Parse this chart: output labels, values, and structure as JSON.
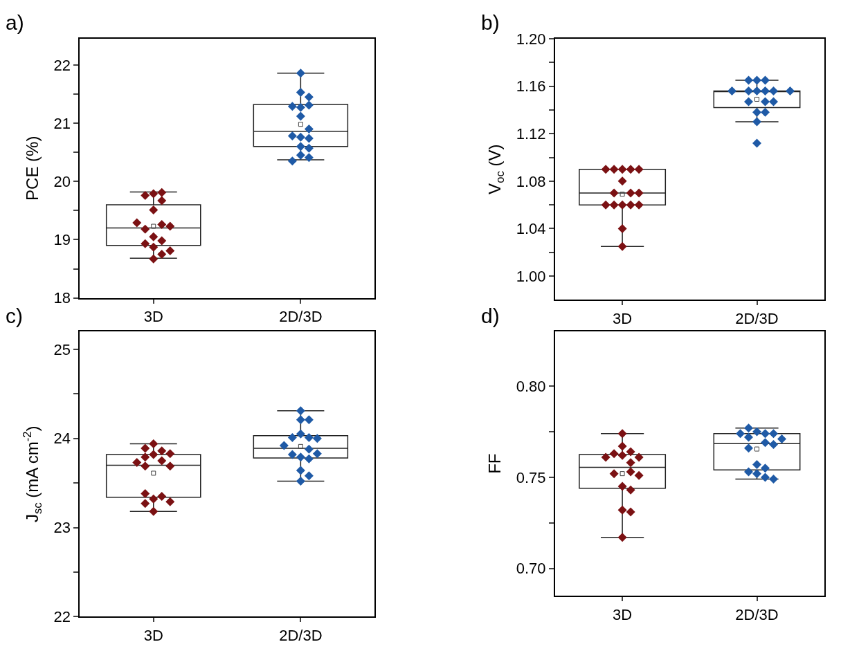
{
  "chart_data": [
    {
      "type": "box",
      "annotations": [
        "a)"
      ],
      "ylabel": "PCE (%)",
      "categories": [
        "3D",
        "2D/3D"
      ],
      "ylim": [
        18,
        22.45
      ],
      "yticks": [
        18,
        {
          "value": 18.5,
          "label": null
        },
        19,
        {
          "value": 19.5,
          "label": null
        },
        20,
        {
          "value": 20.5,
          "label": null
        },
        21,
        {
          "value": 21.5,
          "label": null
        },
        22
      ],
      "boxes": [
        {
          "low": 18.68,
          "q1": 18.9,
          "median": 19.2,
          "q3": 19.6,
          "high": 19.82,
          "mean": 19.23
        },
        {
          "low": 20.37,
          "q1": 20.6,
          "median": 20.86,
          "q3": 21.32,
          "high": 21.86,
          "mean": 20.98
        }
      ],
      "marker": "diamond",
      "grid": false,
      "series": [
        {
          "type": "scatter",
          "x": [
            "3D",
            "3D",
            "3D",
            "3D",
            "3D",
            "3D",
            "3D",
            "3D",
            "3D",
            "3D",
            "3D",
            "3D",
            "3D",
            "3D",
            "3D",
            "3D"
          ],
          "color": "#7b1113",
          "values": [
            19.79,
            19.67,
            19.81,
            19.76,
            19.51,
            19.26,
            19.18,
            19.23,
            19.29,
            19.05,
            18.98,
            18.87,
            18.93,
            18.75,
            18.81,
            18.67
          ]
        },
        {
          "type": "scatter",
          "x": [
            "2D/3D",
            "2D/3D",
            "2D/3D",
            "2D/3D",
            "2D/3D",
            "2D/3D",
            "2D/3D",
            "2D/3D",
            "2D/3D",
            "2D/3D",
            "2D/3D",
            "2D/3D",
            "2D/3D",
            "2D/3D",
            "2D/3D",
            "2D/3D"
          ],
          "color": "#1f5aa6",
          "values": [
            21.86,
            21.53,
            21.45,
            21.27,
            21.31,
            21.29,
            21.12,
            20.9,
            20.76,
            20.74,
            20.78,
            20.6,
            20.57,
            20.45,
            20.41,
            20.35
          ]
        }
      ]
    },
    {
      "type": "box",
      "annotations": [
        "b)"
      ],
      "ylabel": "V$_{oc}$ (V)",
      "categories": [
        "3D",
        "2D/3D"
      ],
      "ylim": [
        0.98,
        1.2
      ],
      "yticks": [
        {
          "value": 1.0,
          "label": "1.00"
        },
        {
          "value": 1.02,
          "label": null
        },
        {
          "value": 1.04,
          "label": "1.04"
        },
        {
          "value": 1.06,
          "label": null
        },
        {
          "value": 1.08,
          "label": "1.08"
        },
        {
          "value": 1.1,
          "label": null
        },
        {
          "value": 1.12,
          "label": "1.12"
        },
        {
          "value": 1.14,
          "label": null
        },
        {
          "value": 1.16,
          "label": "1.16"
        },
        {
          "value": 1.18,
          "label": null
        },
        {
          "value": 1.2,
          "label": "1.20"
        }
      ],
      "boxes": [
        {
          "low": 1.025,
          "q1": 1.06,
          "median": 1.07,
          "q3": 1.09,
          "high": 1.09,
          "mean": 1.069
        },
        {
          "low": 1.13,
          "q1": 1.142,
          "median": 1.156,
          "q3": 1.156,
          "high": 1.165,
          "mean": 1.149
        }
      ],
      "marker": "diamond",
      "grid": false,
      "series": [
        {
          "type": "scatter",
          "x": [
            "3D",
            "3D",
            "3D",
            "3D",
            "3D",
            "3D",
            "3D",
            "3D",
            "3D",
            "3D",
            "3D",
            "3D",
            "3D",
            "3D",
            "3D",
            "3D"
          ],
          "color": "#7b1113",
          "values": [
            1.09,
            1.09,
            1.09,
            1.09,
            1.09,
            1.08,
            1.07,
            1.07,
            1.07,
            1.06,
            1.06,
            1.06,
            1.06,
            1.06,
            1.04,
            1.025
          ]
        },
        {
          "type": "scatter",
          "x": [
            "2D/3D",
            "2D/3D",
            "2D/3D",
            "2D/3D",
            "2D/3D",
            "2D/3D",
            "2D/3D",
            "2D/3D",
            "2D/3D",
            "2D/3D",
            "2D/3D",
            "2D/3D",
            "2D/3D",
            "2D/3D",
            "2D/3D",
            "2D/3D"
          ],
          "color": "#1f5aa6",
          "values": [
            1.165,
            1.165,
            1.165,
            1.156,
            1.156,
            1.156,
            1.156,
            1.156,
            1.156,
            1.147,
            1.147,
            1.147,
            1.138,
            1.138,
            1.13,
            1.112
          ]
        }
      ]
    },
    {
      "type": "box",
      "annotations": [
        "c)"
      ],
      "ylabel": "J$_{sc}$ (mA cm$^{-2}$)",
      "categories": [
        "3D",
        "2D/3D"
      ],
      "ylim": [
        22,
        25.2
      ],
      "yticks": [
        22,
        {
          "value": 22.5,
          "label": null
        },
        23,
        {
          "value": 23.5,
          "label": null
        },
        24,
        {
          "value": 24.5,
          "label": null
        },
        25
      ],
      "boxes": [
        {
          "low": 23.18,
          "q1": 23.34,
          "median": 23.7,
          "q3": 23.82,
          "high": 23.94,
          "mean": 23.61
        },
        {
          "low": 23.52,
          "q1": 23.78,
          "median": 23.89,
          "q3": 24.03,
          "high": 24.31,
          "mean": 23.91
        }
      ],
      "marker": "diamond",
      "grid": false,
      "series": [
        {
          "type": "scatter",
          "x": [
            "3D",
            "3D",
            "3D",
            "3D",
            "3D",
            "3D",
            "3D",
            "3D",
            "3D",
            "3D",
            "3D",
            "3D",
            "3D",
            "3D",
            "3D",
            "3D"
          ],
          "color": "#7b1113",
          "values": [
            23.94,
            23.82,
            23.86,
            23.89,
            23.83,
            23.79,
            23.75,
            23.69,
            23.69,
            23.73,
            23.32,
            23.35,
            23.38,
            23.27,
            23.29,
            23.18
          ]
        },
        {
          "type": "scatter",
          "x": [
            "2D/3D",
            "2D/3D",
            "2D/3D",
            "2D/3D",
            "2D/3D",
            "2D/3D",
            "2D/3D",
            "2D/3D",
            "2D/3D",
            "2D/3D",
            "2D/3D",
            "2D/3D",
            "2D/3D",
            "2D/3D",
            "2D/3D",
            "2D/3D"
          ],
          "color": "#1f5aa6",
          "values": [
            24.31,
            24.21,
            24.21,
            24.05,
            24.01,
            24.01,
            24.0,
            23.92,
            23.88,
            23.82,
            23.83,
            23.79,
            23.77,
            23.64,
            23.58,
            23.52
          ]
        }
      ]
    },
    {
      "type": "box",
      "annotations": [
        "d)"
      ],
      "ylabel": "FF",
      "categories": [
        "3D",
        "2D/3D"
      ],
      "ylim": [
        0.685,
        0.83
      ],
      "yticks": [
        {
          "value": 0.7,
          "label": "0.70"
        },
        {
          "value": 0.725,
          "label": null
        },
        {
          "value": 0.75,
          "label": "0.75"
        },
        {
          "value": 0.775,
          "label": null
        },
        {
          "value": 0.8,
          "label": "0.80"
        }
      ],
      "boxes": [
        {
          "low": 0.717,
          "q1": 0.744,
          "median": 0.7555,
          "q3": 0.7625,
          "high": 0.774,
          "mean": 0.752
        },
        {
          "low": 0.749,
          "q1": 0.754,
          "median": 0.7685,
          "q3": 0.774,
          "high": 0.777,
          "mean": 0.7655
        }
      ],
      "marker": "diamond",
      "grid": false,
      "series": [
        {
          "type": "scatter",
          "x": [
            "3D",
            "3D",
            "3D",
            "3D",
            "3D",
            "3D",
            "3D",
            "3D",
            "3D",
            "3D",
            "3D",
            "3D",
            "3D",
            "3D",
            "3D",
            "3D"
          ],
          "color": "#7b1113",
          "values": [
            0.774,
            0.767,
            0.764,
            0.763,
            0.762,
            0.761,
            0.758,
            0.761,
            0.753,
            0.752,
            0.751,
            0.745,
            0.743,
            0.732,
            0.731,
            0.717
          ]
        },
        {
          "type": "scatter",
          "x": [
            "2D/3D",
            "2D/3D",
            "2D/3D",
            "2D/3D",
            "2D/3D",
            "2D/3D",
            "2D/3D",
            "2D/3D",
            "2D/3D",
            "2D/3D",
            "2D/3D",
            "2D/3D",
            "2D/3D",
            "2D/3D",
            "2D/3D",
            "2D/3D"
          ],
          "color": "#1f5aa6",
          "values": [
            0.775,
            0.774,
            0.777,
            0.774,
            0.774,
            0.772,
            0.771,
            0.769,
            0.768,
            0.766,
            0.757,
            0.755,
            0.753,
            0.752,
            0.75,
            0.749
          ]
        }
      ]
    }
  ]
}
